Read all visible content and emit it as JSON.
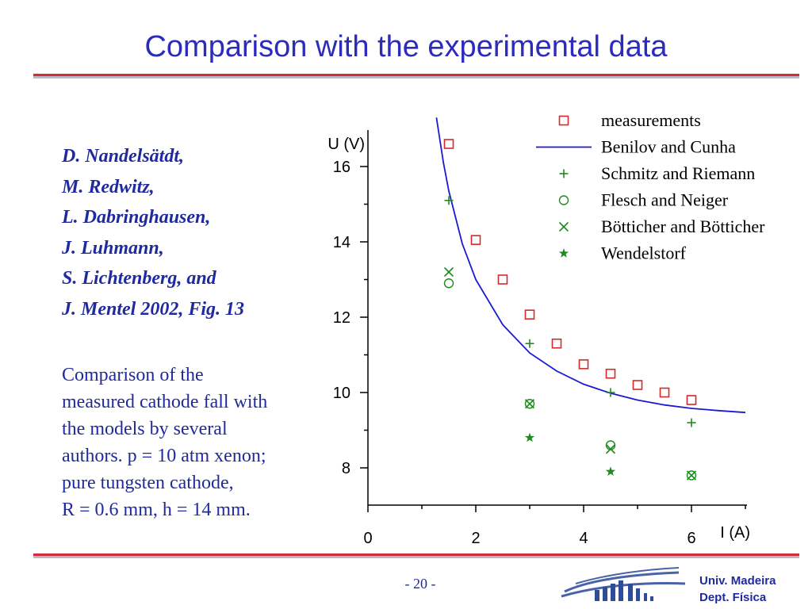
{
  "slide": {
    "title": "Comparison with the experimental data",
    "authors": [
      "D. Nandelsätdt,",
      "M. Redwitz,",
      "L. Dabringhausen,",
      "J. Luhmann,",
      "S. Lichtenberg, and",
      "J. Mentel 2002, Fig. 13"
    ],
    "description": [
      "Comparison of the",
      "measured cathode fall with",
      "the models by several",
      "authors. p = 10 atm xenon;",
      "pure tungsten cathode,",
      "R = 0.6 mm, h = 14 mm."
    ],
    "page_number": "- 20 -",
    "institution": [
      "Univ. Madeira",
      "Dept. Física"
    ]
  },
  "colors": {
    "title": "#2b2bbd",
    "text": "#1f2a9e",
    "rule": "#d42a3a",
    "measurements": "#d42a2a",
    "model_line": "#1a1ad6",
    "green": "#1f8a1f"
  },
  "chart_data": {
    "type": "scatter",
    "xlabel": "I (A)",
    "ylabel": "U (V)",
    "xlim": [
      0,
      7
    ],
    "ylim": [
      7,
      17
    ],
    "xticks": [
      0,
      2,
      4,
      6
    ],
    "yticks": [
      8,
      10,
      12,
      14,
      16
    ],
    "grid": false,
    "legend_position": "top-right",
    "series": [
      {
        "name": "measurements",
        "marker": "square",
        "color": "#d42a2a",
        "x": [
          1.5,
          2.0,
          2.5,
          3.0,
          3.5,
          4.0,
          4.5,
          5.0,
          5.5,
          6.0
        ],
        "y": [
          16.6,
          14.05,
          13.0,
          12.07,
          11.3,
          10.75,
          10.5,
          10.2,
          10.0,
          9.8
        ]
      },
      {
        "name": "Benilov and Cunha",
        "marker": "line",
        "color": "#1a1ad6",
        "x": [
          1.27,
          1.4,
          1.5,
          1.75,
          2.0,
          2.5,
          3.0,
          3.5,
          4.0,
          4.5,
          5.0,
          5.5,
          6.0,
          6.5,
          7.0
        ],
        "y": [
          17.3,
          16.1,
          15.35,
          13.95,
          13.0,
          11.8,
          11.05,
          10.57,
          10.22,
          9.98,
          9.8,
          9.67,
          9.58,
          9.52,
          9.47
        ]
      },
      {
        "name": "Schmitz and Riemann",
        "marker": "plus",
        "color": "#1f8a1f",
        "x": [
          1.5,
          3.0,
          4.5,
          6.0
        ],
        "y": [
          15.1,
          11.3,
          10.0,
          9.2
        ]
      },
      {
        "name": "Flesch and Neiger",
        "marker": "circle",
        "color": "#1f8a1f",
        "x": [
          1.5,
          3.0,
          4.5,
          6.0
        ],
        "y": [
          12.9,
          9.7,
          8.6,
          7.8
        ]
      },
      {
        "name": "Bötticher and Bötticher",
        "marker": "cross",
        "color": "#1f8a1f",
        "x": [
          1.5,
          3.0,
          4.5,
          6.0
        ],
        "y": [
          13.2,
          9.7,
          8.5,
          7.8
        ]
      },
      {
        "name": "Wendelstorf",
        "marker": "star",
        "color": "#1f8a1f",
        "x": [
          3.0,
          4.5
        ],
        "y": [
          8.8,
          7.9
        ]
      }
    ]
  }
}
